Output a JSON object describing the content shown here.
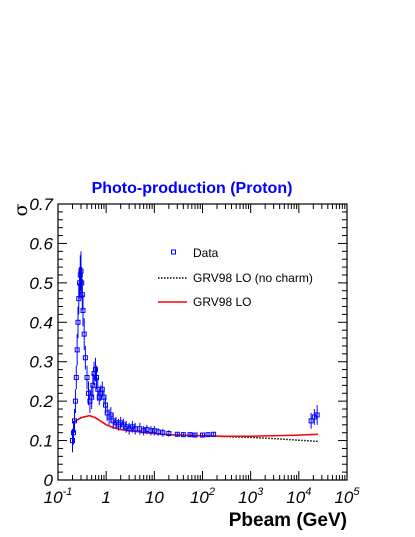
{
  "chart_data": {
    "type": "scatter",
    "title": "Photo-production (Proton)",
    "xlabel": "Pbeam (GeV)",
    "ylabel": "σ",
    "x_scale": "log",
    "xlim": [
      0.1,
      100000
    ],
    "ylim": [
      0,
      0.7
    ],
    "grid": false,
    "legend_position": "top-right",
    "x_ticks": [
      {
        "value": 0.1,
        "base": "10",
        "exp": "-1"
      },
      {
        "value": 1,
        "base": "1",
        "exp": ""
      },
      {
        "value": 10,
        "base": "10",
        "exp": ""
      },
      {
        "value": 100,
        "base": "10",
        "exp": "2"
      },
      {
        "value": 1000,
        "base": "10",
        "exp": "3"
      },
      {
        "value": 10000,
        "base": "10",
        "exp": "4"
      },
      {
        "value": 100000,
        "base": "10",
        "exp": "5"
      }
    ],
    "y_ticks": [
      {
        "value": 0,
        "label": "0"
      },
      {
        "value": 0.1,
        "label": "0.1"
      },
      {
        "value": 0.2,
        "label": "0.2"
      },
      {
        "value": 0.3,
        "label": "0.3"
      },
      {
        "value": 0.4,
        "label": "0.4"
      },
      {
        "value": 0.5,
        "label": "0.5"
      },
      {
        "value": 0.6,
        "label": "0.6"
      },
      {
        "value": 0.7,
        "label": "0.7"
      }
    ],
    "series": [
      {
        "name": "Data",
        "kind": "points",
        "color": "#0000ff",
        "points": [
          [
            0.2,
            0.1,
            0.03
          ],
          [
            0.21,
            0.12,
            0.03
          ],
          [
            0.22,
            0.15,
            0.03
          ],
          [
            0.23,
            0.2,
            0.03
          ],
          [
            0.24,
            0.26,
            0.03
          ],
          [
            0.25,
            0.33,
            0.04
          ],
          [
            0.26,
            0.4,
            0.04
          ],
          [
            0.27,
            0.46,
            0.04
          ],
          [
            0.28,
            0.5,
            0.04
          ],
          [
            0.29,
            0.52,
            0.05
          ],
          [
            0.3,
            0.53,
            0.05
          ],
          [
            0.31,
            0.5,
            0.04
          ],
          [
            0.32,
            0.47,
            0.04
          ],
          [
            0.33,
            0.43,
            0.04
          ],
          [
            0.35,
            0.37,
            0.04
          ],
          [
            0.37,
            0.31,
            0.03
          ],
          [
            0.4,
            0.26,
            0.03
          ],
          [
            0.43,
            0.22,
            0.03
          ],
          [
            0.46,
            0.2,
            0.03
          ],
          [
            0.5,
            0.21,
            0.03
          ],
          [
            0.53,
            0.24,
            0.03
          ],
          [
            0.56,
            0.27,
            0.03
          ],
          [
            0.6,
            0.28,
            0.03
          ],
          [
            0.63,
            0.26,
            0.03
          ],
          [
            0.67,
            0.23,
            0.03
          ],
          [
            0.72,
            0.21,
            0.02
          ],
          [
            0.77,
            0.22,
            0.02
          ],
          [
            0.83,
            0.23,
            0.02
          ],
          [
            0.9,
            0.21,
            0.02
          ],
          [
            0.97,
            0.19,
            0.02
          ],
          [
            1.05,
            0.17,
            0.02
          ],
          [
            1.15,
            0.16,
            0.02
          ],
          [
            1.25,
            0.165,
            0.02
          ],
          [
            1.4,
            0.15,
            0.02
          ],
          [
            1.6,
            0.145,
            0.015
          ],
          [
            1.8,
            0.14,
            0.015
          ],
          [
            2.0,
            0.145,
            0.015
          ],
          [
            2.3,
            0.14,
            0.015
          ],
          [
            2.6,
            0.135,
            0.015
          ],
          [
            3.0,
            0.13,
            0.015
          ],
          [
            3.5,
            0.135,
            0.015
          ],
          [
            4.0,
            0.13,
            0.015
          ],
          [
            5.0,
            0.13,
            0.015
          ],
          [
            6.0,
            0.125,
            0.012
          ],
          [
            7.0,
            0.128,
            0.012
          ],
          [
            8.5,
            0.125,
            0.012
          ],
          [
            10,
            0.125,
            0.012
          ],
          [
            12,
            0.122,
            0.01
          ],
          [
            15,
            0.12,
            0.01
          ],
          [
            20,
            0.118,
            0.008
          ],
          [
            30,
            0.116,
            0.006
          ],
          [
            40,
            0.115,
            0.006
          ],
          [
            55,
            0.115,
            0.006
          ],
          [
            70,
            0.114,
            0.006
          ],
          [
            100,
            0.114,
            0.005
          ],
          [
            130,
            0.115,
            0.005
          ],
          [
            170,
            0.116,
            0.005
          ],
          [
            18000,
            0.15,
            0.02
          ],
          [
            21000,
            0.16,
            0.02
          ],
          [
            24000,
            0.165,
            0.025
          ]
        ]
      },
      {
        "name": "GRV98 LO (no charm)",
        "kind": "dotted-line",
        "color": "#000000",
        "points": [
          [
            0.2,
            0.145
          ],
          [
            0.3,
            0.158
          ],
          [
            0.45,
            0.163
          ],
          [
            0.6,
            0.158
          ],
          [
            0.8,
            0.148
          ],
          [
            1.0,
            0.14
          ],
          [
            1.5,
            0.132
          ],
          [
            2,
            0.128
          ],
          [
            3,
            0.125
          ],
          [
            5,
            0.122
          ],
          [
            10,
            0.118
          ],
          [
            20,
            0.115
          ],
          [
            50,
            0.113
          ],
          [
            100,
            0.112
          ],
          [
            300,
            0.11
          ],
          [
            1000,
            0.108
          ],
          [
            3000,
            0.105
          ],
          [
            10000,
            0.101
          ],
          [
            25000,
            0.098
          ]
        ]
      },
      {
        "name": "GRV98 LO",
        "kind": "line",
        "color": "#ff0000",
        "points": [
          [
            0.2,
            0.145
          ],
          [
            0.3,
            0.158
          ],
          [
            0.45,
            0.163
          ],
          [
            0.6,
            0.158
          ],
          [
            0.8,
            0.148
          ],
          [
            1.0,
            0.14
          ],
          [
            1.5,
            0.132
          ],
          [
            2,
            0.128
          ],
          [
            3,
            0.125
          ],
          [
            5,
            0.122
          ],
          [
            10,
            0.118
          ],
          [
            20,
            0.115
          ],
          [
            50,
            0.113
          ],
          [
            100,
            0.112
          ],
          [
            300,
            0.111
          ],
          [
            1000,
            0.111
          ],
          [
            3000,
            0.112
          ],
          [
            10000,
            0.114
          ],
          [
            25000,
            0.116
          ]
        ]
      }
    ]
  }
}
